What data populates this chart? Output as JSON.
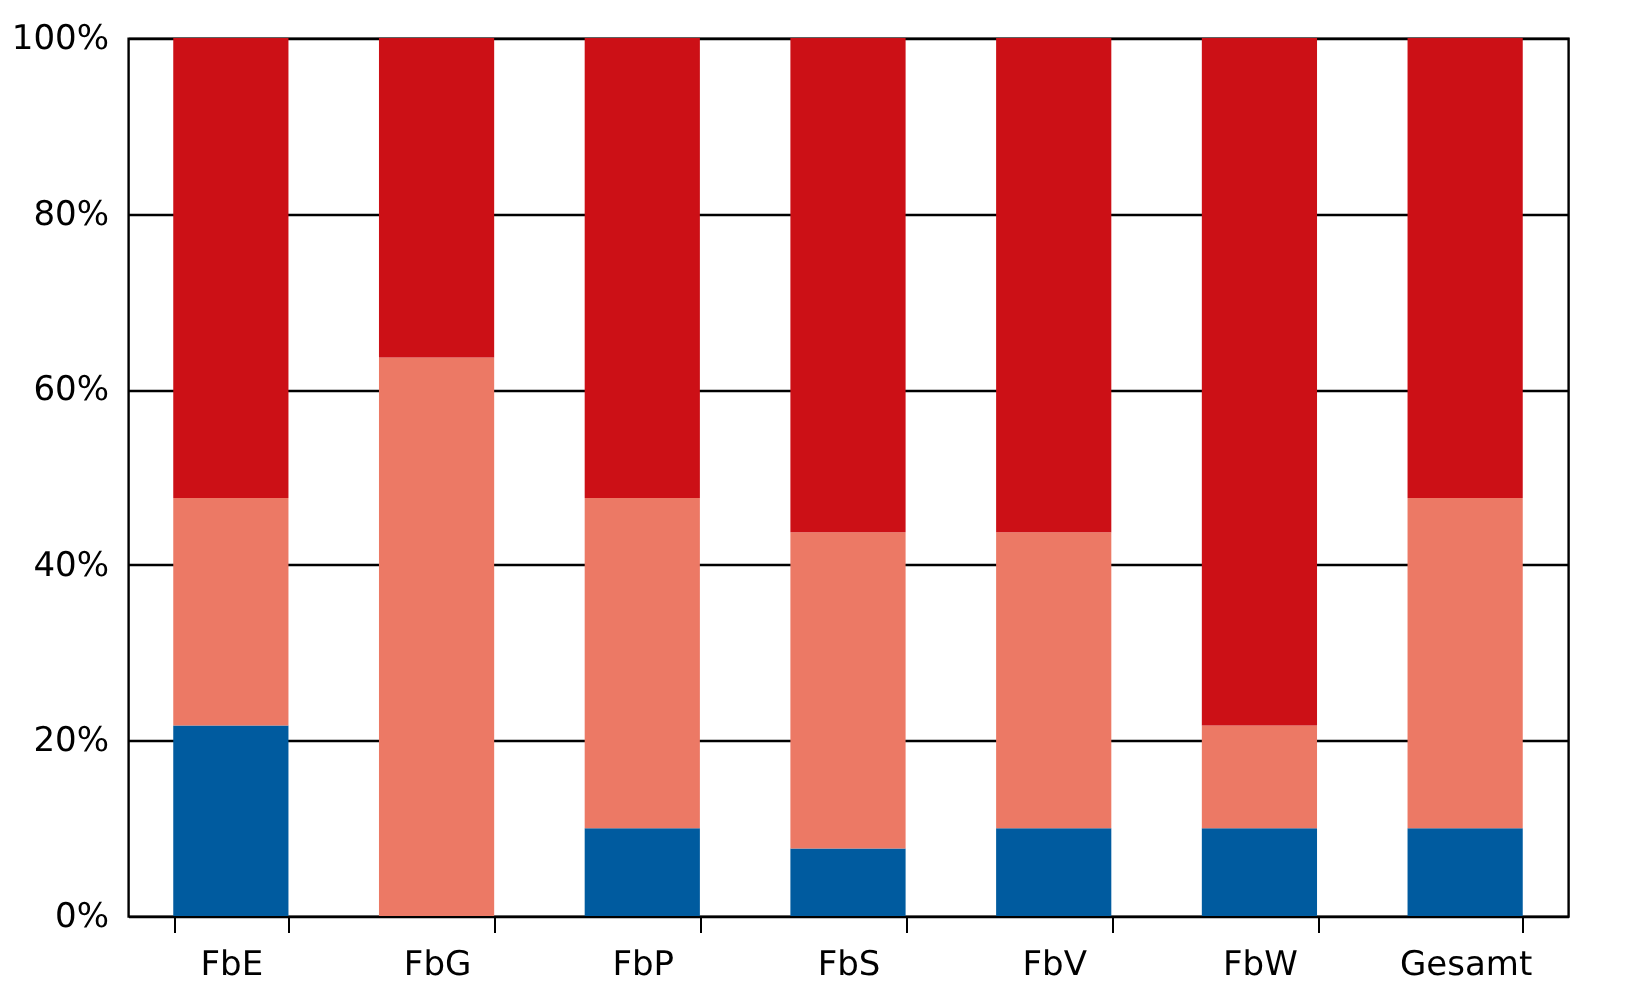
{
  "chart_data": {
    "type": "bar",
    "stacked": true,
    "categories": [
      "FbE",
      "FbG",
      "FbP",
      "FbS",
      "FbV",
      "FbW",
      "Gesamt"
    ],
    "series": [
      {
        "color": "#005b9f",
        "values": [
          21.7,
          0,
          10,
          7.7,
          10,
          10,
          10
        ]
      },
      {
        "color": "#ec7965",
        "values": [
          25.9,
          63.6,
          37.6,
          36,
          33.7,
          11.7,
          37.6
        ]
      },
      {
        "color": "#cc1016",
        "values": [
          52.4,
          36.4,
          52.4,
          56.3,
          56.3,
          78.3,
          52.4
        ]
      }
    ],
    "ylim": [
      0,
      100
    ],
    "yticks": [
      {
        "value": 0,
        "label": "0%"
      },
      {
        "value": 20,
        "label": "20%"
      },
      {
        "value": 40,
        "label": "40%"
      },
      {
        "value": 60,
        "label": "60%"
      },
      {
        "value": 80,
        "label": "80%"
      },
      {
        "value": 100,
        "label": "100%"
      }
    ],
    "grid": "y",
    "legend": false
  }
}
